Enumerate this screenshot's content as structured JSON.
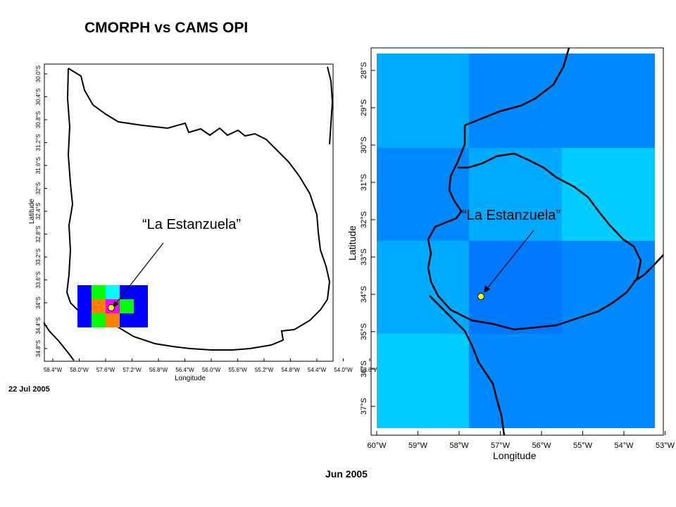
{
  "title": "CMORPH vs CAMS OPI",
  "left_map": {
    "annotation": "“La Estanzuela”",
    "date": "22 Jul 2005",
    "xlabel": "Longitude",
    "ylabel": "Latitude",
    "x_ticks": [
      "58.4°W",
      "58.0°W",
      "57.6°W",
      "57.2°W",
      "56.8°W",
      "56.4°W",
      "56.0°W",
      "55.6°W",
      "55.2°W",
      "54.8°W",
      "54.4°W",
      "54.0°W",
      "53.6°W"
    ],
    "y_ticks": [
      "30.0°S",
      "30.4°S",
      "30.8°S",
      "31.2°S",
      "31.6°S",
      "32°S",
      "32.4°S",
      "32.8°S",
      "33.2°S",
      "33.6°S",
      "34°S",
      "34.4°S",
      "34.8°S"
    ],
    "grid_colors": [
      [
        "#0000ff",
        "#00ff00",
        "#00ffff",
        "#0000ff",
        "#0000ff"
      ],
      [
        "#0000ff",
        "#ff8000",
        "#ff00ff",
        "#00ff00",
        "#0000ff"
      ],
      [
        "#0000ff",
        "#00ff00",
        "#ff8000",
        "#0000ff",
        "#0000ff"
      ]
    ],
    "marker_color": "#ffff00"
  },
  "right_map": {
    "annotation": "“La Estanzuela”",
    "date": "Jun 2005",
    "xlabel": "Longitude",
    "ylabel": "Latitude",
    "x_ticks": [
      "60°W",
      "59°W",
      "58°W",
      "57°W",
      "56°W",
      "55°W",
      "54°W",
      "53°W"
    ],
    "y_ticks": [
      "28°S",
      "29°S",
      "30°S",
      "31°S",
      "32°S",
      "33°S",
      "34°S",
      "35°S",
      "36°S",
      "37°S"
    ],
    "grid_colors": [
      [
        "#00aaff",
        "#0088ff",
        "#0088ff"
      ],
      [
        "#0088ff",
        "#00aaff",
        "#00ccff"
      ],
      [
        "#00aaff",
        "#0077ff",
        "#0088ff"
      ],
      [
        "#00ccff",
        "#0088ff",
        "#0088ff"
      ]
    ],
    "marker_color": "#ffff00"
  }
}
